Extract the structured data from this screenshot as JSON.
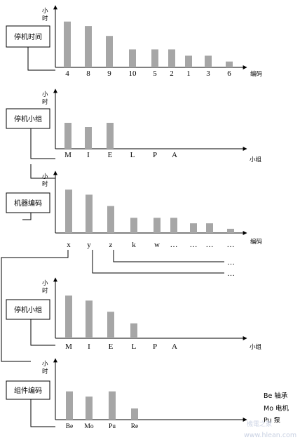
{
  "ylabel": [
    "小",
    "时"
  ],
  "legend": [
    "Be 轴承",
    "Mo 电机",
    "Pu 泵"
  ],
  "watermark": [
    "機電之家",
    "www.hlean.com"
  ],
  "ellipsis_rows": [
    "…",
    "…"
  ],
  "chart_data": [
    {
      "type": "bar",
      "box_label": "停机时间",
      "xlabel": "编码",
      "categories": [
        "4",
        "8",
        "9",
        "10",
        "5",
        "2",
        "1",
        "3",
        "6"
      ],
      "values": [
        10.2,
        9.2,
        7.0,
        4.0,
        4.0,
        4.0,
        2.6,
        2.6,
        1.3
      ]
    },
    {
      "type": "bar",
      "box_label": "停机小组",
      "xlabel": "小组",
      "categories": [
        "M",
        "I",
        "E",
        "L",
        "P",
        "A"
      ],
      "values": [
        7.4,
        6.2,
        7.4,
        0,
        0,
        0
      ]
    },
    {
      "type": "bar",
      "box_label": "机器编码",
      "xlabel": "编码",
      "categories": [
        "x",
        "y",
        "z",
        "k",
        "w",
        "…",
        "…",
        "…",
        "…"
      ],
      "values": [
        10.3,
        9.1,
        6.4,
        3.6,
        3.6,
        3.6,
        2.3,
        2.3,
        1.0
      ]
    },
    {
      "type": "bar",
      "box_label": "停机小组",
      "xlabel": "小组",
      "categories": [
        "M",
        "I",
        "E",
        "L",
        "P",
        "A"
      ],
      "values": [
        10.3,
        9.1,
        6.4,
        3.6,
        0,
        0
      ]
    },
    {
      "type": "bar",
      "box_label": "组件编码",
      "xlabel": "",
      "categories": [
        "Be",
        "Mo",
        "Pu",
        "Re"
      ],
      "values": [
        7.6,
        6.2,
        7.6,
        3.0
      ]
    }
  ]
}
